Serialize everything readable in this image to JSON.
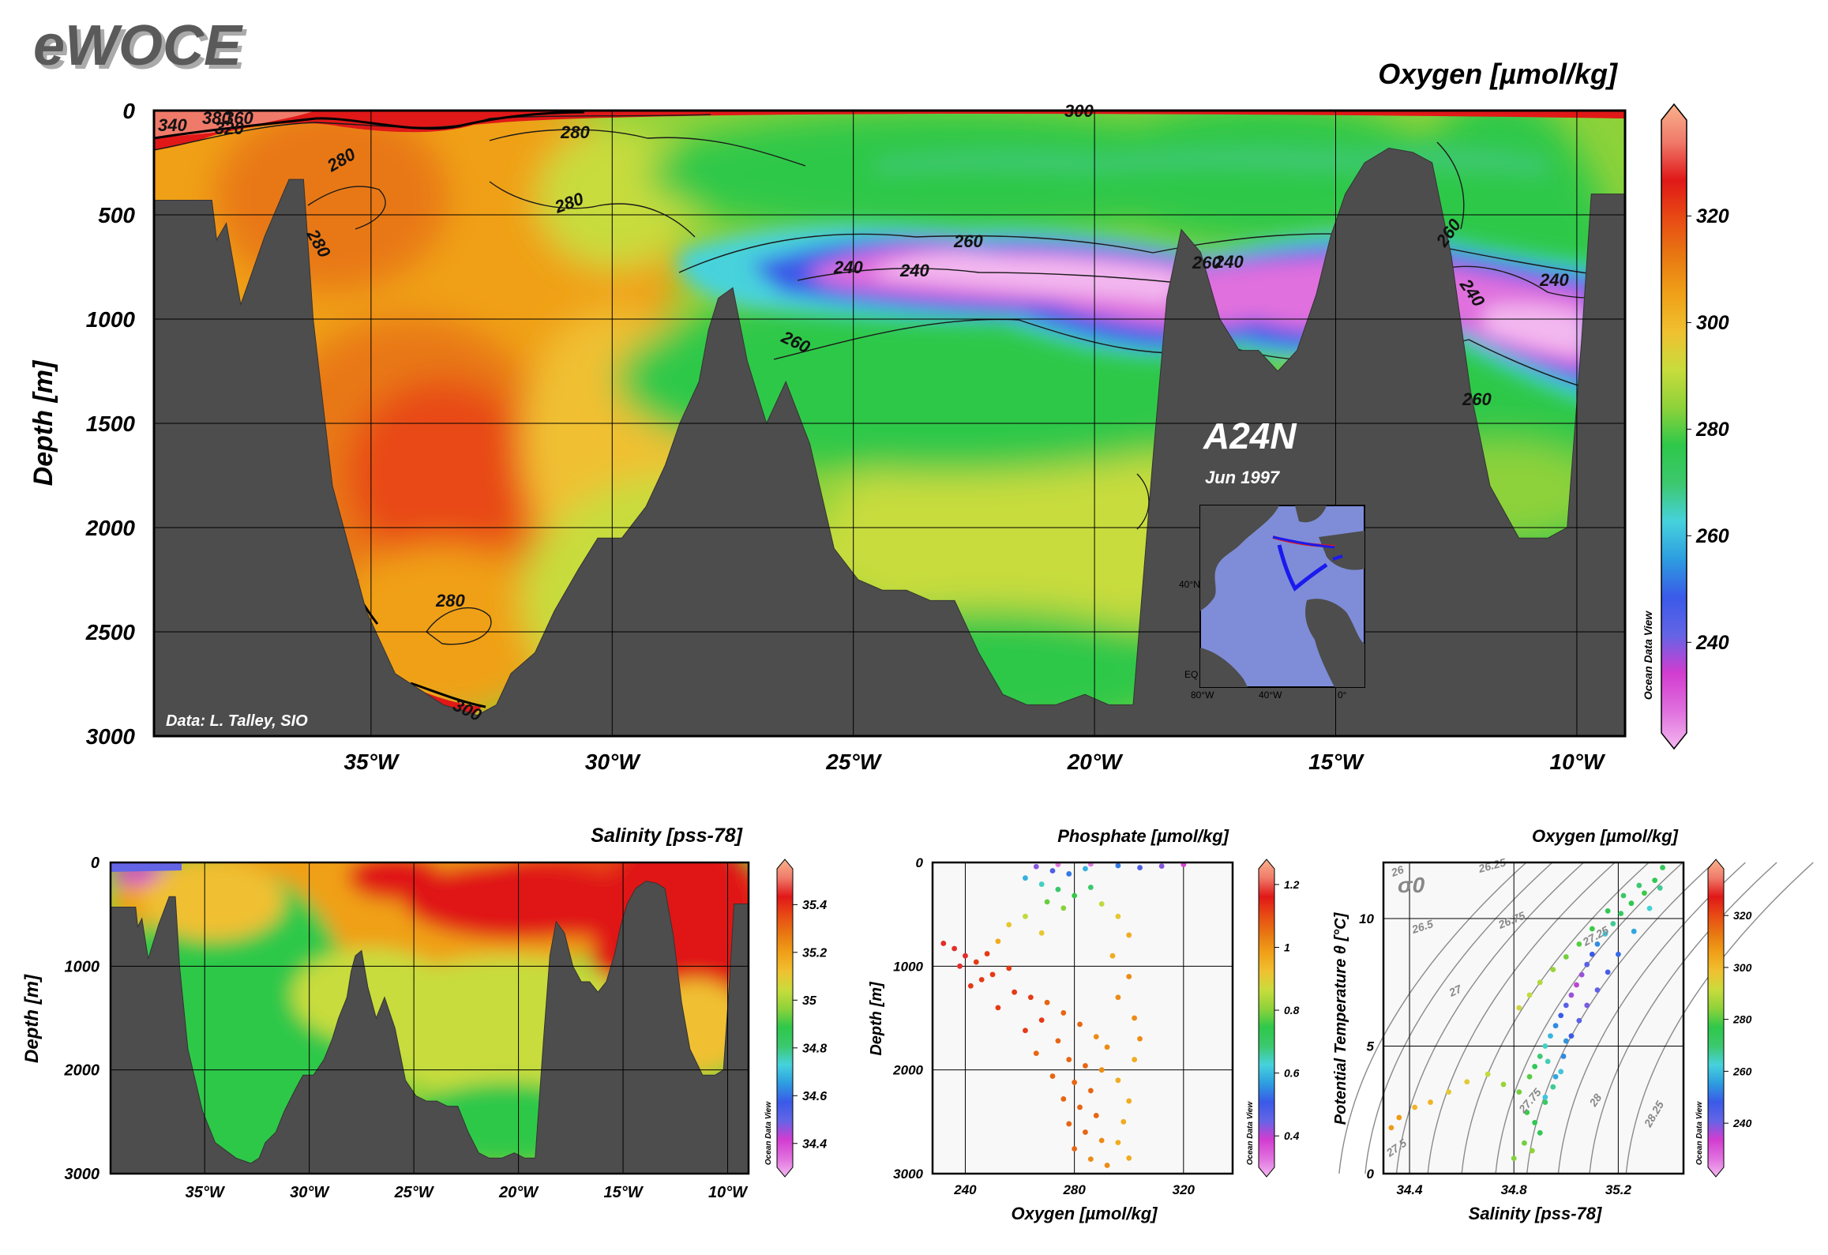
{
  "brand": "eWOCE",
  "colors": {
    "land": "#4d4d4d",
    "palette": [
      "#f3b8ef",
      "#e070de",
      "#d23cd0",
      "#6464e6",
      "#3a5ae8",
      "#2d9de0",
      "#46d2dc",
      "#3cc86e",
      "#2ec84a",
      "#8ed23a",
      "#c8dc3c",
      "#f0c030",
      "#f0a018",
      "#e87812",
      "#e84a14",
      "#e01818",
      "#f07a6a",
      "#f8b28c"
    ]
  },
  "section": {
    "name": "A24N",
    "date": "Jun 1997",
    "credit": "Data: L. Talley, SIO",
    "watermark": "Ocean Data View",
    "map": {
      "lat_labels": [
        "40°N",
        "EQ"
      ],
      "lon_labels": [
        "80°W",
        "40°W",
        "0°"
      ]
    }
  },
  "chart_data": [
    {
      "id": "oxygen-section",
      "type": "heatmap",
      "title": "Oxygen [µmol/kg]",
      "ylabel": "Depth [m]",
      "xlabel": "",
      "xlim": [
        -39.5,
        -9
      ],
      "ylim": [
        0,
        3000
      ],
      "x_ticks": [
        "35°W",
        "30°W",
        "25°W",
        "20°W",
        "15°W",
        "10°W"
      ],
      "x_tick_values": [
        -35,
        -30,
        -25,
        -20,
        -15,
        -10
      ],
      "y_ticks": [
        "0",
        "500",
        "1000",
        "1500",
        "2000",
        "2500",
        "3000"
      ],
      "y_tick_values": [
        0,
        500,
        1000,
        1500,
        2000,
        2500,
        3000
      ],
      "colorbar": {
        "range": [
          223,
          338
        ],
        "ticks": [
          "240",
          "260",
          "280",
          "300",
          "320"
        ],
        "tick_values": [
          240,
          260,
          280,
          300,
          320
        ]
      },
      "contour_labels": [
        "340",
        "380",
        "360",
        "320",
        "300",
        "280",
        "280",
        "280",
        "280",
        "260",
        "260",
        "260",
        "260",
        "260",
        "240",
        "240",
        "240",
        "240",
        "240",
        "280",
        "300"
      ],
      "bathymetry": [
        [
          -39.5,
          430
        ],
        [
          -38.3,
          430
        ],
        [
          -38.2,
          620
        ],
        [
          -38,
          540
        ],
        [
          -37.7,
          930
        ],
        [
          -37.2,
          600
        ],
        [
          -36.7,
          330
        ],
        [
          -36.4,
          330
        ],
        [
          -36.2,
          1000
        ],
        [
          -35.8,
          1800
        ],
        [
          -35.1,
          2400
        ],
        [
          -34.5,
          2700
        ],
        [
          -33.5,
          2850
        ],
        [
          -32.8,
          2900
        ],
        [
          -32.4,
          2850
        ],
        [
          -32.1,
          2700
        ],
        [
          -31.6,
          2600
        ],
        [
          -31.2,
          2400
        ],
        [
          -30.7,
          2200
        ],
        [
          -30.3,
          2050
        ],
        [
          -29.8,
          2050
        ],
        [
          -29.3,
          1900
        ],
        [
          -28.9,
          1700
        ],
        [
          -28.6,
          1500
        ],
        [
          -28.2,
          1300
        ],
        [
          -28,
          1050
        ],
        [
          -27.8,
          900
        ],
        [
          -27.5,
          850
        ],
        [
          -27.2,
          1200
        ],
        [
          -26.8,
          1500
        ],
        [
          -26.4,
          1300
        ],
        [
          -25.9,
          1600
        ],
        [
          -25.4,
          2100
        ],
        [
          -24.9,
          2250
        ],
        [
          -24.4,
          2300
        ],
        [
          -23.9,
          2300
        ],
        [
          -23.4,
          2350
        ],
        [
          -22.9,
          2350
        ],
        [
          -22.4,
          2600
        ],
        [
          -21.9,
          2800
        ],
        [
          -21.4,
          2850
        ],
        [
          -20.8,
          2850
        ],
        [
          -20.2,
          2800
        ],
        [
          -19.7,
          2850
        ],
        [
          -19.2,
          2850
        ],
        [
          -18.8,
          1700
        ],
        [
          -18.5,
          900
        ],
        [
          -18.2,
          570
        ],
        [
          -17.8,
          680
        ],
        [
          -17.4,
          1000
        ],
        [
          -17,
          1150
        ],
        [
          -16.6,
          1150
        ],
        [
          -16.2,
          1250
        ],
        [
          -15.8,
          1150
        ],
        [
          -15.4,
          880
        ],
        [
          -15.1,
          600
        ],
        [
          -14.8,
          400
        ],
        [
          -14.4,
          250
        ],
        [
          -13.9,
          180
        ],
        [
          -13.4,
          200
        ],
        [
          -13,
          250
        ],
        [
          -12.6,
          700
        ],
        [
          -12.2,
          1350
        ],
        [
          -11.8,
          1800
        ],
        [
          -11.2,
          2050
        ],
        [
          -10.6,
          2050
        ],
        [
          -10.2,
          2000
        ],
        [
          -9.9,
          1100
        ],
        [
          -9.7,
          400
        ],
        [
          -9,
          400
        ]
      ]
    },
    {
      "id": "salinity-section",
      "type": "heatmap",
      "title": "Salinity [pss-78]",
      "ylabel": "Depth [m]",
      "xlabel": "",
      "xlim": [
        -39.5,
        -9
      ],
      "ylim": [
        0,
        3000
      ],
      "x_ticks": [
        "35°W",
        "30°W",
        "25°W",
        "20°W",
        "15°W",
        "10°W"
      ],
      "x_tick_values": [
        -35,
        -30,
        -25,
        -20,
        -15,
        -10
      ],
      "y_ticks": [
        "0",
        "1000",
        "2000",
        "3000"
      ],
      "y_tick_values": [
        0,
        1000,
        2000,
        3000
      ],
      "colorbar": {
        "range": [
          34.3,
          35.55
        ],
        "ticks": [
          "34.4",
          "34.6",
          "34.8",
          "35",
          "35.2",
          "35.4"
        ],
        "tick_values": [
          34.4,
          34.6,
          34.8,
          35,
          35.2,
          35.4
        ]
      }
    },
    {
      "id": "phosphate-scatter",
      "type": "scatter",
      "title": "Phosphate [µmol/kg]",
      "xlabel": "Oxygen [µmol/kg]",
      "ylabel": "Depth [m]",
      "xlim": [
        228,
        338
      ],
      "ylim": [
        0,
        3000
      ],
      "x_ticks": [
        "240",
        "280",
        "320"
      ],
      "x_tick_values": [
        240,
        280,
        320
      ],
      "y_ticks": [
        "0",
        "1000",
        "2000",
        "3000"
      ],
      "y_tick_values": [
        0,
        1000,
        2000,
        3000
      ],
      "colorbar": {
        "range": [
          0.3,
          1.25
        ],
        "ticks": [
          "0.4",
          "0.6",
          "0.8",
          "1",
          "1.2"
        ],
        "tick_values": [
          0.4,
          0.6,
          0.8,
          1,
          1.2
        ]
      },
      "points": [
        [
          232,
          780,
          1.15
        ],
        [
          236,
          830,
          1.15
        ],
        [
          240,
          900,
          1.15
        ],
        [
          244,
          960,
          1.1
        ],
        [
          238,
          1000,
          1.15
        ],
        [
          250,
          1080,
          1.1
        ],
        [
          246,
          1130,
          1.1
        ],
        [
          242,
          1190,
          1.1
        ],
        [
          258,
          1250,
          1.1
        ],
        [
          264,
          1300,
          1.1
        ],
        [
          270,
          1350,
          1.05
        ],
        [
          252,
          1400,
          1.1
        ],
        [
          276,
          1450,
          1.05
        ],
        [
          268,
          1520,
          1.1
        ],
        [
          282,
          1560,
          1.05
        ],
        [
          262,
          1620,
          1.1
        ],
        [
          288,
          1680,
          1.0
        ],
        [
          274,
          1720,
          1.05
        ],
        [
          292,
          1780,
          1.0
        ],
        [
          266,
          1840,
          1.05
        ],
        [
          278,
          1900,
          1.05
        ],
        [
          284,
          1960,
          1.05
        ],
        [
          290,
          2000,
          1.0
        ],
        [
          272,
          2060,
          1.05
        ],
        [
          280,
          2120,
          1.05
        ],
        [
          286,
          2200,
          1.05
        ],
        [
          276,
          2280,
          1.05
        ],
        [
          282,
          2360,
          1.05
        ],
        [
          288,
          2440,
          1.05
        ],
        [
          278,
          2520,
          1.05
        ],
        [
          284,
          2600,
          1.05
        ],
        [
          290,
          2680,
          1.0
        ],
        [
          280,
          2760,
          1.05
        ],
        [
          286,
          2860,
          1.0
        ],
        [
          292,
          2920,
          1.0
        ],
        [
          266,
          40,
          0.45
        ],
        [
          272,
          80,
          0.5
        ],
        [
          278,
          110,
          0.55
        ],
        [
          284,
          60,
          0.6
        ],
        [
          296,
          30,
          0.55
        ],
        [
          304,
          50,
          0.5
        ],
        [
          312,
          35,
          0.45
        ],
        [
          320,
          20,
          0.4
        ],
        [
          262,
          150,
          0.6
        ],
        [
          268,
          210,
          0.65
        ],
        [
          274,
          260,
          0.7
        ],
        [
          280,
          320,
          0.75
        ],
        [
          270,
          380,
          0.78
        ],
        [
          276,
          440,
          0.8
        ],
        [
          286,
          240,
          0.7
        ],
        [
          262,
          520,
          0.85
        ],
        [
          256,
          600,
          0.9
        ],
        [
          268,
          680,
          0.9
        ],
        [
          290,
          400,
          0.85
        ],
        [
          296,
          520,
          0.9
        ],
        [
          300,
          700,
          0.95
        ],
        [
          252,
          760,
          0.95
        ],
        [
          294,
          900,
          0.95
        ],
        [
          300,
          1100,
          1.0
        ],
        [
          296,
          1300,
          1.0
        ],
        [
          302,
          1500,
          1.0
        ],
        [
          304,
          1700,
          1.0
        ],
        [
          302,
          1900,
          0.95
        ],
        [
          296,
          2100,
          0.95
        ],
        [
          300,
          2300,
          0.95
        ],
        [
          298,
          2500,
          0.95
        ],
        [
          296,
          2700,
          0.95
        ],
        [
          300,
          2850,
          0.95
        ],
        [
          274,
          20,
          0.35
        ],
        [
          286,
          15,
          0.35
        ],
        [
          248,
          880,
          1.1
        ],
        [
          256,
          1020,
          1.1
        ]
      ]
    },
    {
      "id": "ts-diagram",
      "type": "scatter",
      "title": "Oxygen [µmol/kg]",
      "xlabel": "Salinity [pss-78]",
      "ylabel": "Potential Temperature θ [°C]",
      "xlim": [
        34.3,
        35.45
      ],
      "ylim": [
        0,
        12.2
      ],
      "x_ticks": [
        "34.4",
        "34.8",
        "35.2"
      ],
      "x_tick_values": [
        34.4,
        34.8,
        35.2
      ],
      "y_ticks": [
        "0",
        "5",
        "10"
      ],
      "y_tick_values": [
        0,
        5,
        10
      ],
      "sigma_label": "σ0",
      "isopycnal_labels": [
        "26",
        "26.25",
        "26.5",
        "26.75",
        "27",
        "27.25",
        "27.5",
        "27.75",
        "28",
        "28.25"
      ],
      "colorbar": {
        "range": [
          223,
          338
        ],
        "ticks": [
          "240",
          "260",
          "280",
          "300",
          "320"
        ],
        "tick_values": [
          240,
          260,
          280,
          300,
          320
        ]
      },
      "points": [
        [
          34.33,
          1.8,
          305
        ],
        [
          34.36,
          2.2,
          305
        ],
        [
          34.42,
          2.6,
          300
        ],
        [
          34.48,
          2.8,
          300
        ],
        [
          34.55,
          3.2,
          295
        ],
        [
          34.62,
          3.6,
          295
        ],
        [
          34.7,
          3.9,
          290
        ],
        [
          34.76,
          3.5,
          285
        ],
        [
          34.82,
          3.2,
          282
        ],
        [
          34.86,
          3.8,
          280
        ],
        [
          34.88,
          4.2,
          275
        ],
        [
          34.9,
          4.6,
          270
        ],
        [
          34.92,
          5.0,
          265
        ],
        [
          34.94,
          5.4,
          260
        ],
        [
          34.96,
          5.8,
          255
        ],
        [
          34.98,
          6.2,
          250
        ],
        [
          35.0,
          6.6,
          245
        ],
        [
          35.02,
          7.0,
          240
        ],
        [
          35.04,
          7.4,
          238
        ],
        [
          35.06,
          7.8,
          240
        ],
        [
          35.08,
          8.2,
          245
        ],
        [
          35.1,
          8.6,
          250
        ],
        [
          35.12,
          9.0,
          255
        ],
        [
          35.15,
          9.4,
          262
        ],
        [
          35.18,
          9.8,
          268
        ],
        [
          35.21,
          10.2,
          272
        ],
        [
          35.25,
          10.6,
          276
        ],
        [
          35.3,
          11.0,
          278
        ],
        [
          35.34,
          11.5,
          276
        ],
        [
          35.37,
          12.0,
          274
        ],
        [
          34.85,
          2.4,
          278
        ],
        [
          34.88,
          2.0,
          276
        ],
        [
          34.9,
          1.6,
          275
        ],
        [
          34.92,
          2.8,
          272
        ],
        [
          34.95,
          3.4,
          268
        ],
        [
          34.98,
          4.0,
          262
        ],
        [
          34.84,
          1.2,
          282
        ],
        [
          34.87,
          0.9,
          284
        ],
        [
          34.82,
          6.5,
          292
        ],
        [
          34.86,
          7.0,
          290
        ],
        [
          34.9,
          7.5,
          288
        ],
        [
          34.95,
          8.0,
          285
        ],
        [
          35.0,
          8.5,
          282
        ],
        [
          35.05,
          9.0,
          280
        ],
        [
          35.1,
          9.6,
          278
        ],
        [
          35.16,
          10.3,
          275
        ],
        [
          35.22,
          10.9,
          272
        ],
        [
          35.28,
          11.3,
          270
        ],
        [
          35.02,
          5.4,
          250
        ],
        [
          35.05,
          6.0,
          245
        ],
        [
          35.08,
          6.6,
          242
        ],
        [
          35.12,
          7.2,
          244
        ],
        [
          35.16,
          7.9,
          248
        ],
        [
          35.2,
          8.6,
          252
        ],
        [
          35.26,
          9.5,
          258
        ],
        [
          35.32,
          10.4,
          264
        ],
        [
          35.36,
          11.2,
          268
        ],
        [
          34.92,
          3.0,
          262
        ],
        [
          34.96,
          3.8,
          258
        ],
        [
          34.99,
          4.6,
          255
        ],
        [
          34.93,
          4.4,
          266
        ],
        [
          35.0,
          5.2,
          256
        ],
        [
          34.8,
          0.6,
          283
        ]
      ]
    }
  ]
}
